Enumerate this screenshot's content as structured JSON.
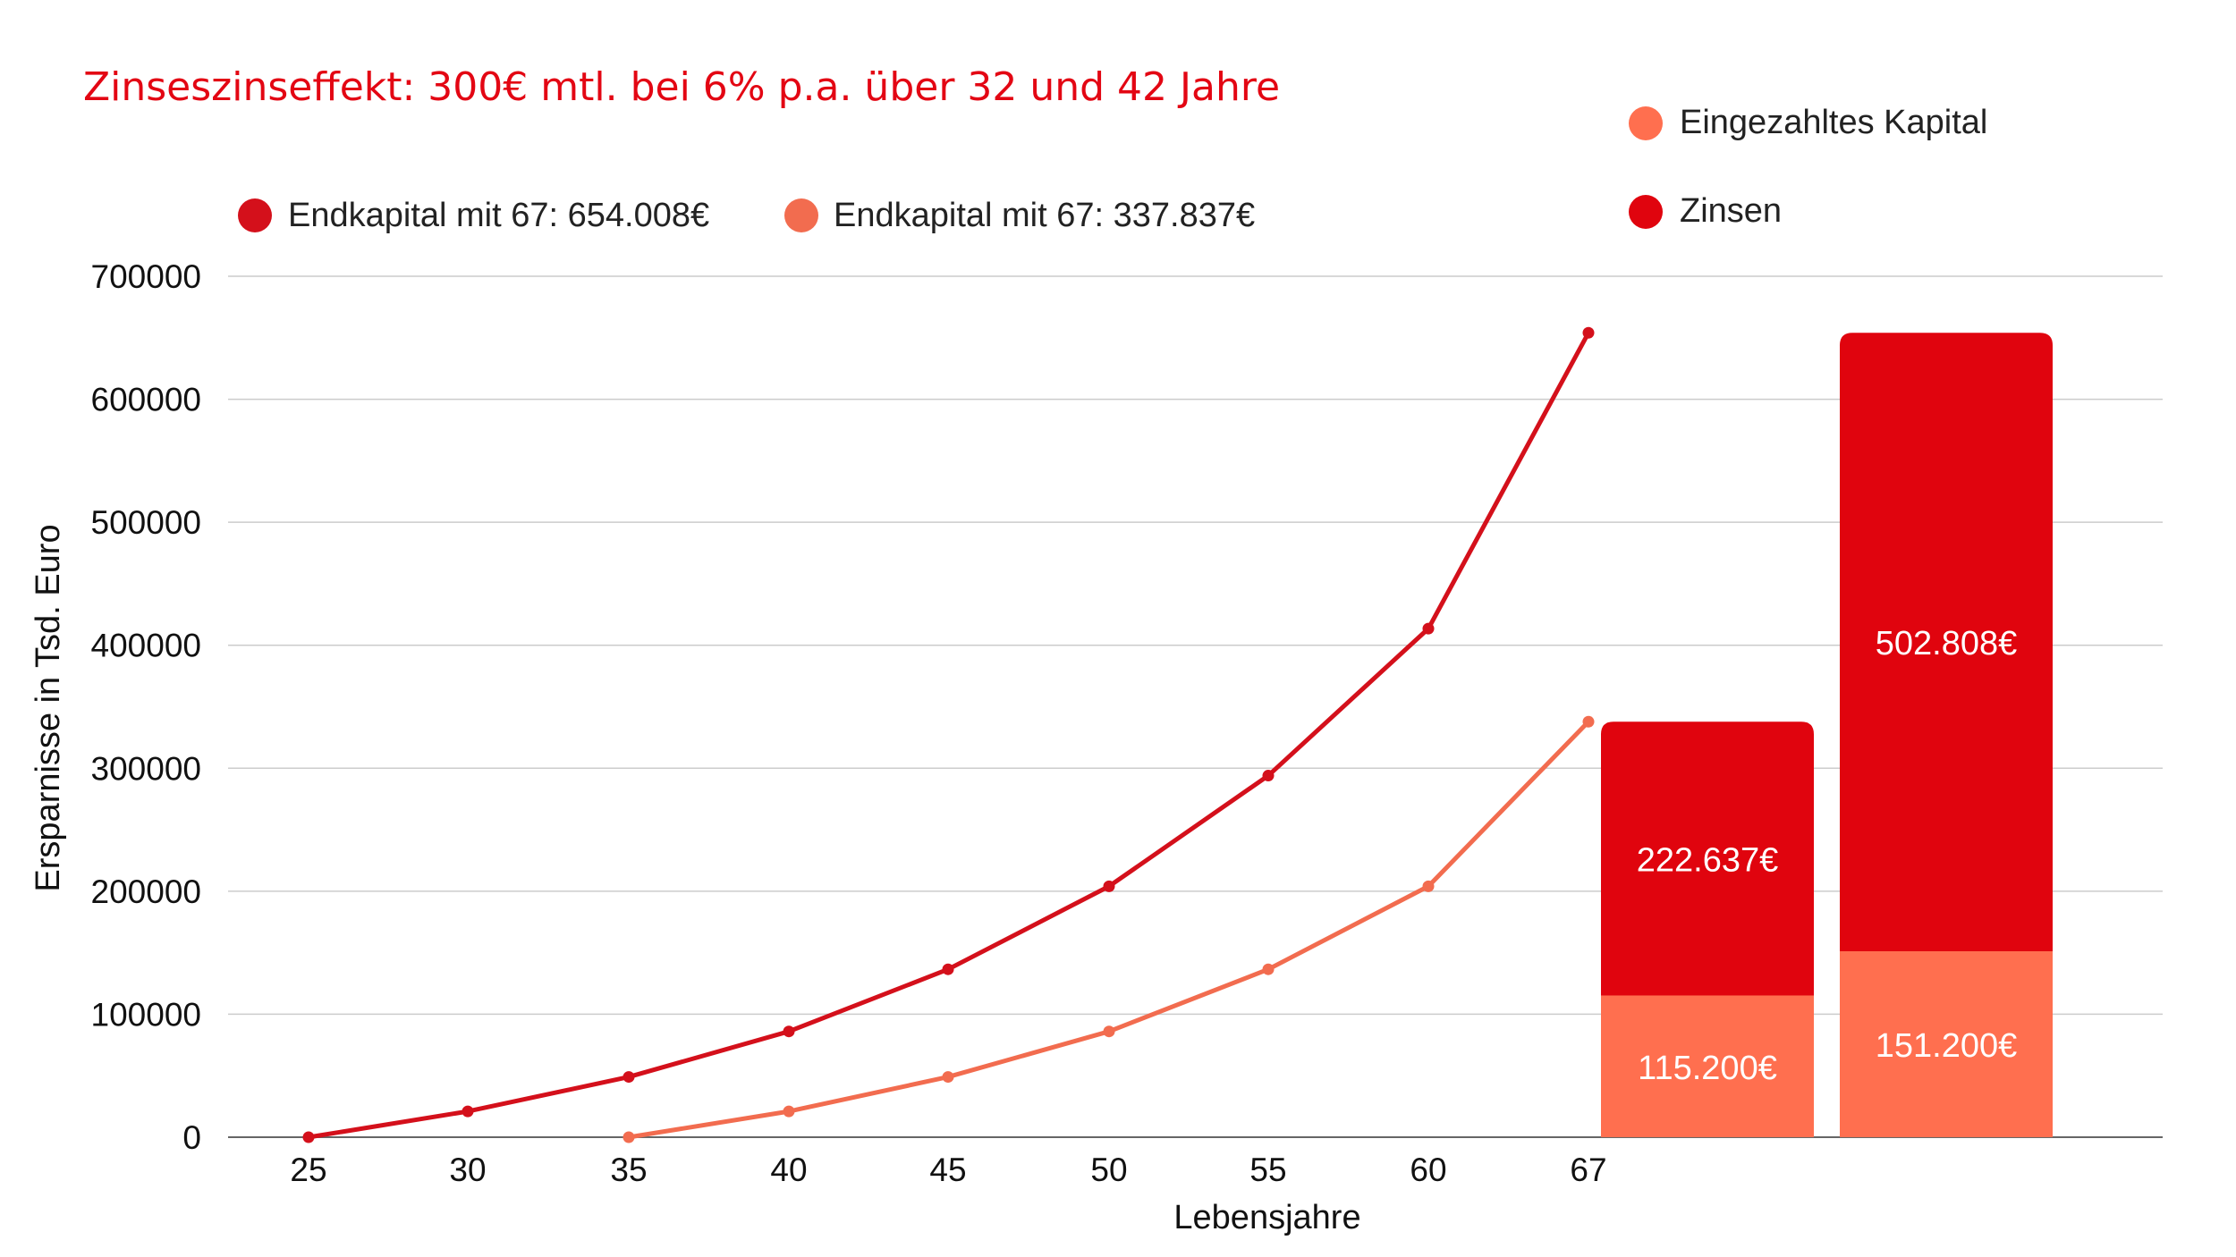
{
  "chart_data": {
    "type": "line",
    "title": "Zinseszinseffekt: 300€ mtl. bei 6% p.a. über 32 und 42 Jahre",
    "xlabel": "Lebensjahre",
    "ylabel": "Ersparnisse in Tsd. Euro",
    "ylim": [
      0,
      700000
    ],
    "yticks": [
      "0",
      "100000",
      "200000",
      "300000",
      "400000",
      "500000",
      "600000",
      "700000"
    ],
    "categories": [
      "25",
      "30",
      "35",
      "40",
      "45",
      "50",
      "55",
      "60",
      "67"
    ],
    "grid": true,
    "series": [
      {
        "name": "Endkapital mit 67: 654.008€",
        "color": "#d4101b",
        "values": [
          0,
          21000,
          49000,
          86000,
          136500,
          204000,
          294000,
          413500,
          654008
        ]
      },
      {
        "name": "Endkapital mit 67: 337.837€",
        "color": "#f26c4f",
        "values": [
          null,
          null,
          0,
          21000,
          49000,
          86000,
          136500,
          204000,
          337837
        ]
      }
    ],
    "stacked_bars": {
      "legend": [
        {
          "name": "Eingezahltes Kapital",
          "color": "#ff6f4f"
        },
        {
          "name": "Zinsen",
          "color": "#e0040e"
        }
      ],
      "bars": [
        {
          "kapital": 115200,
          "zinsen": 222637,
          "kapital_label": "115.200€",
          "zinsen_label": "222.637€"
        },
        {
          "kapital": 151200,
          "zinsen": 502808,
          "kapital_label": "151.200€",
          "zinsen_label": "502.808€"
        }
      ]
    }
  }
}
